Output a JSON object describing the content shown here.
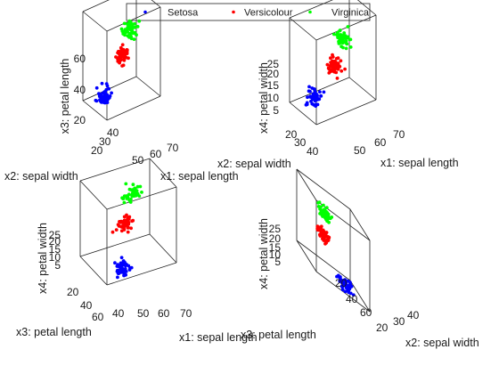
{
  "legend": [
    {
      "name": "Setosa",
      "color": "#0000ff"
    },
    {
      "name": "Versicolour",
      "color": "#ff0000"
    },
    {
      "name": "Virginica",
      "color": "#00ff00"
    }
  ],
  "chart_data": [
    {
      "type": "scatter",
      "title": "",
      "xlabel": "x1: sepal length",
      "ylabel": "x2: sepal width",
      "zlabel": "x3: petal length",
      "x_ticks": [
        "50",
        "60",
        "70"
      ],
      "y_ticks": [
        "20",
        "30",
        "40"
      ],
      "z_ticks": [
        "20",
        "40",
        "60"
      ],
      "xlim": [
        42,
        80
      ],
      "ylim": [
        20,
        44
      ],
      "zlim": [
        10,
        70
      ],
      "grid": false,
      "series": [
        {
          "name": "Setosa",
          "color": "#0000ff",
          "x_mean": 50,
          "y_mean": 34,
          "z_mean": 15,
          "count": 50
        },
        {
          "name": "Versicolour",
          "color": "#ff0000",
          "x_mean": 59,
          "y_mean": 28,
          "z_mean": 43,
          "count": 50
        },
        {
          "name": "Virginica",
          "color": "#00ff00",
          "x_mean": 66,
          "y_mean": 30,
          "z_mean": 56,
          "count": 50
        }
      ]
    },
    {
      "type": "scatter",
      "title": "",
      "xlabel": "x1: sepal length",
      "ylabel": "x2: sepal width",
      "zlabel": "x4: petal width",
      "x_ticks": [
        "50",
        "60",
        "70"
      ],
      "y_ticks": [
        "20",
        "30",
        "40"
      ],
      "z_ticks": [
        "5",
        "10",
        "15",
        "20",
        "25"
      ],
      "xlim": [
        42,
        80
      ],
      "ylim": [
        20,
        44
      ],
      "zlim": [
        0,
        28
      ],
      "grid": false,
      "series": [
        {
          "name": "Setosa",
          "color": "#0000ff",
          "x_mean": 50,
          "y_mean": 34,
          "z_mean": 3,
          "count": 50
        },
        {
          "name": "Versicolour",
          "color": "#ff0000",
          "x_mean": 59,
          "y_mean": 28,
          "z_mean": 13,
          "count": 50
        },
        {
          "name": "Virginica",
          "color": "#00ff00",
          "x_mean": 66,
          "y_mean": 30,
          "z_mean": 20,
          "count": 50
        }
      ]
    },
    {
      "type": "scatter",
      "title": "",
      "xlabel": "x1: sepal length",
      "ylabel": "x3: petal length",
      "zlabel": "x4: petal width",
      "x_ticks": [
        "40",
        "50",
        "60",
        "70"
      ],
      "y_ticks": [
        "20",
        "40",
        "60"
      ],
      "z_ticks": [
        "5",
        "10",
        "15",
        "20",
        "25"
      ],
      "xlim": [
        40,
        80
      ],
      "ylim": [
        10,
        70
      ],
      "zlim": [
        0,
        28
      ],
      "grid": false,
      "series": [
        {
          "name": "Setosa",
          "color": "#0000ff",
          "x_mean": 50,
          "y_mean": 15,
          "z_mean": 3,
          "count": 50
        },
        {
          "name": "Versicolour",
          "color": "#ff0000",
          "x_mean": 59,
          "y_mean": 43,
          "z_mean": 13,
          "count": 50
        },
        {
          "name": "Virginica",
          "color": "#00ff00",
          "x_mean": 66,
          "y_mean": 56,
          "z_mean": 20,
          "count": 50
        }
      ]
    },
    {
      "type": "scatter",
      "title": "",
      "xlabel": "x2: sepal width",
      "ylabel": "x3: petal length",
      "zlabel": "x4: petal width",
      "x_ticks": [
        "20",
        "30",
        "40"
      ],
      "y_ticks": [
        "20",
        "40",
        "60"
      ],
      "z_ticks": [
        "5",
        "10",
        "15",
        "20",
        "25"
      ],
      "xlim": [
        20,
        44
      ],
      "ylim": [
        10,
        70
      ],
      "zlim": [
        0,
        28
      ],
      "grid": false,
      "series": [
        {
          "name": "Setosa",
          "color": "#0000ff",
          "x_mean": 34,
          "y_mean": 15,
          "z_mean": 3,
          "count": 50
        },
        {
          "name": "Versicolour",
          "color": "#ff0000",
          "x_mean": 28,
          "y_mean": 43,
          "z_mean": 13,
          "count": 50
        },
        {
          "name": "Virginica",
          "color": "#00ff00",
          "x_mean": 30,
          "y_mean": 56,
          "z_mean": 20,
          "count": 50
        }
      ]
    }
  ]
}
